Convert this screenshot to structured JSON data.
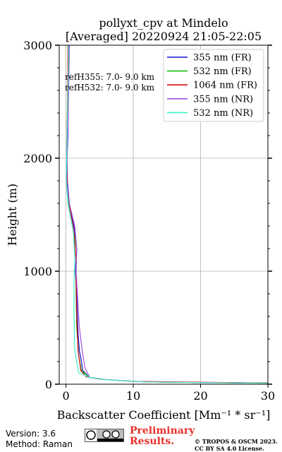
{
  "chart_data": {
    "type": "line",
    "title": "pollyxt_cpv at Mindelo",
    "subtitle": "[Averaged] 20220924 21:05-22:05",
    "xlabel": "Backscatter Coefficient [Mm⁻¹ * sr⁻¹]",
    "ylabel": "Height (m)",
    "xlim": [
      -1,
      30
    ],
    "ylim": [
      0,
      3000
    ],
    "x_ticks": [
      0,
      10,
      20,
      30
    ],
    "y_ticks": [
      0,
      1000,
      2000,
      3000
    ],
    "grid": true,
    "legend_position": "top-right",
    "annotations": [
      "refH355:  7.0- 9.0 km",
      "refH532:  7.0- 9.0 km"
    ],
    "series": [
      {
        "name": "355 nm (FR)",
        "color": "#1010d0",
        "points": [
          [
            30,
            10
          ],
          [
            12,
            20
          ],
          [
            6,
            40
          ],
          [
            3.5,
            60
          ],
          [
            2.5,
            120
          ],
          [
            2.3,
            200
          ],
          [
            2.0,
            300
          ],
          [
            1.8,
            450
          ],
          [
            1.7,
            600
          ],
          [
            1.6,
            800
          ],
          [
            1.4,
            1000
          ],
          [
            1.6,
            1200
          ],
          [
            1.2,
            1400
          ],
          [
            0.5,
            1600
          ],
          [
            0.2,
            1800
          ],
          [
            0.15,
            2000
          ],
          [
            0.3,
            2200
          ],
          [
            0.35,
            2500
          ],
          [
            0.4,
            2800
          ],
          [
            0.5,
            3000
          ]
        ]
      },
      {
        "name": "532 nm (FR)",
        "color": "#12c012",
        "points": [
          [
            30,
            10
          ],
          [
            12,
            20
          ],
          [
            6,
            40
          ],
          [
            3.5,
            60
          ],
          [
            2.3,
            120
          ],
          [
            1.9,
            250
          ],
          [
            1.6,
            500
          ],
          [
            1.5,
            800
          ],
          [
            1.5,
            1000
          ],
          [
            1.6,
            1200
          ],
          [
            1.0,
            1400
          ],
          [
            0.4,
            1600
          ],
          [
            0.1,
            1800
          ],
          [
            0.1,
            2000
          ],
          [
            0.2,
            2300
          ],
          [
            0.3,
            2600
          ],
          [
            0.35,
            2900
          ],
          [
            0.3,
            3000
          ]
        ]
      },
      {
        "name": "1064 nm (FR)",
        "color": "#d01010",
        "points": [
          [
            30,
            10
          ],
          [
            10,
            25
          ],
          [
            5,
            45
          ],
          [
            3,
            65
          ],
          [
            2.2,
            120
          ],
          [
            1.8,
            300
          ],
          [
            1.6,
            600
          ],
          [
            1.5,
            900
          ],
          [
            1.5,
            1100
          ],
          [
            1.2,
            1350
          ],
          [
            0.6,
            1550
          ],
          [
            0.2,
            1750
          ],
          [
            0.1,
            2000
          ],
          [
            0.2,
            2400
          ],
          [
            0.3,
            2800
          ],
          [
            0.3,
            3000
          ]
        ]
      },
      {
        "name": "355 nm (NR)",
        "color": "#a050e0",
        "points": [
          [
            30,
            8
          ],
          [
            12,
            20
          ],
          [
            6,
            40
          ],
          [
            3.5,
            60
          ],
          [
            2.8,
            150
          ],
          [
            2.4,
            300
          ],
          [
            2.0,
            500
          ],
          [
            1.7,
            800
          ],
          [
            1.5,
            1000
          ],
          [
            1.6,
            1200
          ],
          [
            1.3,
            1400
          ],
          [
            0.5,
            1600
          ],
          [
            0.1,
            1800
          ],
          [
            0.15,
            2000
          ],
          [
            0.3,
            2300
          ],
          [
            0.4,
            2600
          ],
          [
            0.5,
            2900
          ],
          [
            0.45,
            3000
          ]
        ]
      },
      {
        "name": "532 nm (NR)",
        "color": "#40f0c8",
        "points": [
          [
            30,
            8
          ],
          [
            12,
            20
          ],
          [
            6,
            40
          ],
          [
            3.5,
            60
          ],
          [
            1.9,
            100
          ],
          [
            1.3,
            300
          ],
          [
            1.2,
            600
          ],
          [
            1.2,
            900
          ],
          [
            1.3,
            1100
          ],
          [
            1.1,
            1350
          ],
          [
            0.3,
            1600
          ],
          [
            0.05,
            1800
          ],
          [
            0.1,
            2000
          ],
          [
            0.2,
            2300
          ],
          [
            0.3,
            2600
          ],
          [
            0.4,
            2850
          ],
          [
            0.35,
            3000
          ]
        ]
      }
    ]
  },
  "footer": {
    "version": "Version: 3.6",
    "method": "Method: Raman",
    "preliminary_line1": "Preliminary",
    "preliminary_line2": "Results.",
    "copyright_line1": "© TROPOS & OSCM 2023.",
    "copyright_line2": "CC BY SA 4.0 License."
  }
}
